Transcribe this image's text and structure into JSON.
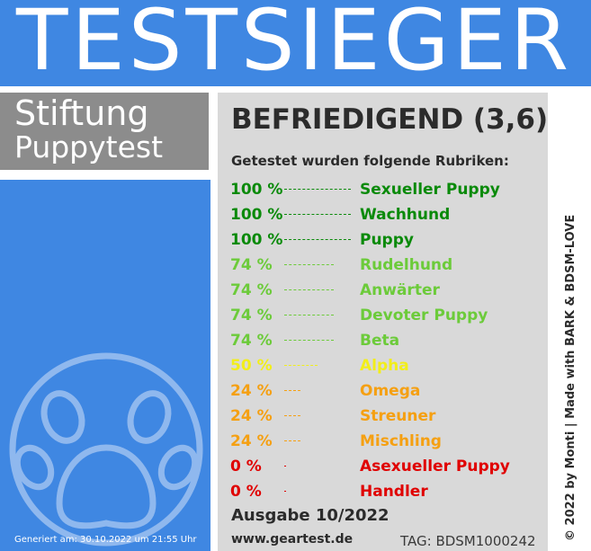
{
  "header": {
    "title": "TESTSIEGER"
  },
  "organization": {
    "line1": "Stiftung",
    "line2": "Puppytest"
  },
  "result": {
    "rating": "BEFRIEDIGEND (3,6)",
    "subtitle": "Getestet wurden folgende Rubriken:",
    "rows": [
      {
        "percent": "100 %",
        "category": "Sexueller Puppy",
        "color": "#0a8a0a",
        "value": 100
      },
      {
        "percent": "100 %",
        "category": "Wachhund",
        "color": "#0a8a0a",
        "value": 100
      },
      {
        "percent": "100 %",
        "category": "Puppy",
        "color": "#0a8a0a",
        "value": 100
      },
      {
        "percent": "74 %",
        "category": "Rudelhund",
        "color": "#6ccb3a",
        "value": 74
      },
      {
        "percent": "74 %",
        "category": "Anwärter",
        "color": "#6ccb3a",
        "value": 74
      },
      {
        "percent": "74 %",
        "category": "Devoter Puppy",
        "color": "#6ccb3a",
        "value": 74
      },
      {
        "percent": "74 %",
        "category": "Beta",
        "color": "#6ccb3a",
        "value": 74
      },
      {
        "percent": "50 %",
        "category": "Alpha",
        "color": "#f2ee1a",
        "value": 50
      },
      {
        "percent": "24 %",
        "category": "Omega",
        "color": "#f5a012",
        "value": 24
      },
      {
        "percent": "24 %",
        "category": "Streuner",
        "color": "#f5a012",
        "value": 24
      },
      {
        "percent": "24 %",
        "category": "Mischling",
        "color": "#f5a012",
        "value": 24
      },
      {
        "percent": "0 %",
        "category": "Asexueller Puppy",
        "color": "#e00000",
        "value": 0
      },
      {
        "percent": "0 %",
        "category": "Handler",
        "color": "#e00000",
        "value": 0
      }
    ],
    "issue": "Ausgabe 10/2022",
    "website": "www.geartest.de",
    "tag": "TAG: BDSM1000242"
  },
  "footer": {
    "generated": "Generiert am: 30.10.2022 um 21:55 Uhr",
    "copyright": "© 2022 by Monti | Made with BARK & BDSM-LOVE"
  },
  "colors": {
    "brand_blue": "#3f87e2",
    "org_grey": "#8c8c8c",
    "card_grey": "#d9d9d9"
  },
  "icons": {
    "logo": "paw-icon"
  }
}
